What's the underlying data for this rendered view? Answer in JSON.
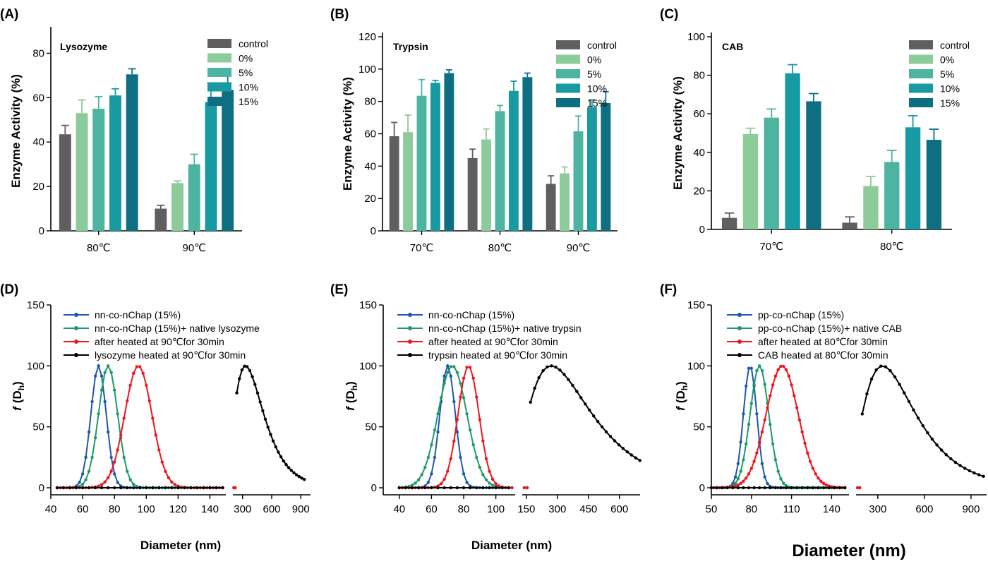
{
  "colors": {
    "control": "#5f5f5f",
    "0%": "#8ccb9a",
    "5%": "#4cb4a0",
    "10%": "#179aa2",
    "15%": "#0e6f82",
    "blue": "#1f56b0",
    "green": "#1c9a6a",
    "red": "#f0151b",
    "black": "#000000"
  },
  "chart_data": [
    {
      "panel": "(A)",
      "type": "bar",
      "inset_label": "Lysozyme",
      "ylabel": "Enzyme Activity (%)",
      "ylim": [
        0,
        90
      ],
      "yticks": [
        "0",
        "20",
        "40",
        "60",
        "80"
      ],
      "categories": [
        "80℃",
        "90℃"
      ],
      "series": [
        {
          "name": "control",
          "values": [
            43.5,
            10
          ],
          "errors": [
            4,
            1.5
          ]
        },
        {
          "name": "0%",
          "values": [
            53,
            21.5
          ],
          "errors": [
            6,
            1
          ]
        },
        {
          "name": "5%",
          "values": [
            55,
            30
          ],
          "errors": [
            5.5,
            4.5
          ]
        },
        {
          "name": "10%",
          "values": [
            61,
            58
          ],
          "errors": [
            3,
            8.5
          ]
        },
        {
          "name": "15%",
          "values": [
            70.5,
            63.5
          ],
          "errors": [
            2.5,
            9
          ]
        }
      ]
    },
    {
      "panel": "(B)",
      "type": "bar",
      "inset_label": "Trypsin",
      "ylabel": "Enzyme Activity (%)",
      "ylim": [
        0,
        120
      ],
      "yticks": [
        "0",
        "20",
        "40",
        "60",
        "80",
        "100",
        "120"
      ],
      "categories": [
        "70℃",
        "80℃",
        "90℃"
      ],
      "series": [
        {
          "name": "control",
          "values": [
            58.5,
            45,
            29
          ],
          "errors": [
            8.5,
            5.5,
            5
          ]
        },
        {
          "name": "0%",
          "values": [
            61,
            56.5,
            35.5
          ],
          "errors": [
            10.5,
            6.5,
            4
          ]
        },
        {
          "name": "5%",
          "values": [
            83.5,
            74,
            61.5
          ],
          "errors": [
            10,
            3.5,
            9.5
          ]
        },
        {
          "name": "10%",
          "values": [
            91.5,
            86.5,
            76.5
          ],
          "errors": [
            1.5,
            6,
            4.5
          ]
        },
        {
          "name": "15%",
          "values": [
            97.5,
            95,
            79
          ],
          "errors": [
            2,
            2.5,
            7
          ]
        }
      ]
    },
    {
      "panel": "(C)",
      "type": "bar",
      "inset_label": "CAB",
      "ylabel": "Enzyme Activity (%)",
      "ylim": [
        0,
        100
      ],
      "yticks": [
        "0",
        "20",
        "40",
        "60",
        "80",
        "100"
      ],
      "categories": [
        "70℃",
        "80℃"
      ],
      "series": [
        {
          "name": "control",
          "values": [
            6,
            3.5
          ],
          "errors": [
            2.5,
            3
          ]
        },
        {
          "name": "0%",
          "values": [
            49.5,
            22.5
          ],
          "errors": [
            3,
            5
          ]
        },
        {
          "name": "5%",
          "values": [
            58,
            35
          ],
          "errors": [
            4.5,
            6
          ]
        },
        {
          "name": "10%",
          "values": [
            81,
            53
          ],
          "errors": [
            4.5,
            6
          ]
        },
        {
          "name": "15%",
          "values": [
            66.5,
            46.5
          ],
          "errors": [
            4,
            5.5
          ]
        }
      ]
    },
    {
      "panel": "(D)",
      "type": "line",
      "ylabel_main": "f",
      "ylabel_sub": "h",
      "ylabel_open": "(D",
      "ylabel_close": ")",
      "xlabel": "Diameter (nm)",
      "ylim": [
        0,
        150
      ],
      "yticks": [
        "0",
        "50",
        "100",
        "150"
      ],
      "x_left": {
        "range": [
          40,
          150
        ],
        "ticks": [
          "40",
          "60",
          "80",
          "100",
          "120",
          "140"
        ]
      },
      "x_right": {
        "range": [
          200,
          1000
        ],
        "ticks": [
          "300",
          "600",
          "900"
        ]
      },
      "series": [
        {
          "name": "nn-co-nChap (15%)",
          "color": "blue",
          "center": 70,
          "width": 4.8,
          "min": 44,
          "max": 150
        },
        {
          "name": "nn-co-nChap (15%)+ native lysozyme",
          "color": "green",
          "center": 76,
          "width": 6,
          "min": 44,
          "max": 150
        },
        {
          "name": "after heated at 90℃for 30min",
          "color": "red",
          "center": 95,
          "width": 8.5,
          "min": 44,
          "max": 150
        },
        {
          "name": "lysozyme heated at 90℃for 30min",
          "color": "black",
          "center": 330,
          "width": 0.45,
          "log": true,
          "min": 44,
          "max": 950
        }
      ]
    },
    {
      "panel": "(E)",
      "type": "line",
      "ylabel_main": "f",
      "ylabel_sub": "h",
      "ylabel_open": "(D",
      "ylabel_close": ")",
      "xlabel": "Diameter (nm)",
      "ylim": [
        0,
        150
      ],
      "yticks": [
        "0",
        "50",
        "100",
        "150"
      ],
      "x_left": {
        "range": [
          30,
          112
        ],
        "ticks": [
          "40",
          "60",
          "80",
          "100"
        ]
      },
      "x_right": {
        "range": [
          130,
          700
        ],
        "ticks": [
          "150",
          "300",
          "450",
          "600"
        ]
      },
      "series": [
        {
          "name": "nn-co-nChap (15%)",
          "color": "blue",
          "center": 70,
          "width": 4.8,
          "min": 40,
          "max": 160
        },
        {
          "name": "nn-co-nChap (15%)+ native trypsin",
          "color": "green",
          "center": 73,
          "width": 9,
          "min": 40,
          "max": 112
        },
        {
          "name": "after heated at 90℃for 30min",
          "color": "red",
          "center": 83,
          "width": 6.5,
          "min": 40,
          "max": 160
        },
        {
          "name": "trypsin heated at 90℃for 30min",
          "color": "black",
          "center": 270,
          "width": 0.55,
          "log": true,
          "min": 40,
          "max": 700
        }
      ]
    },
    {
      "panel": "(F)",
      "type": "line",
      "ylabel_main": "f",
      "ylabel_sub": "h",
      "ylabel_open": "(D",
      "ylabel_close": ")",
      "xlabel": "Diameter (nm)",
      "ylim": [
        0,
        150
      ],
      "yticks": [
        "0",
        "50",
        "100",
        "150"
      ],
      "x_left": {
        "range": [
          50,
          153
        ],
        "ticks": [
          "50",
          "80",
          "110",
          "140"
        ]
      },
      "x_right": {
        "range": [
          160,
          1000
        ],
        "ticks": [
          "300",
          "600",
          "900"
        ]
      },
      "series": [
        {
          "name": "pp-co-nChap (15%)",
          "color": "blue",
          "center": 79,
          "width": 5,
          "min": 50,
          "max": 153
        },
        {
          "name": "pp-co-nChap (15%)+ native CAB",
          "color": "green",
          "center": 86,
          "width": 7,
          "min": 50,
          "max": 153
        },
        {
          "name": "after heated at 80℃for 30min",
          "color": "red",
          "center": 103,
          "width": 12,
          "min": 50,
          "max": 175
        },
        {
          "name": "CAB heated at 80℃for 30min",
          "color": "black",
          "center": 330,
          "width": 0.5,
          "log": true,
          "min": 50,
          "max": 1000
        }
      ]
    }
  ]
}
